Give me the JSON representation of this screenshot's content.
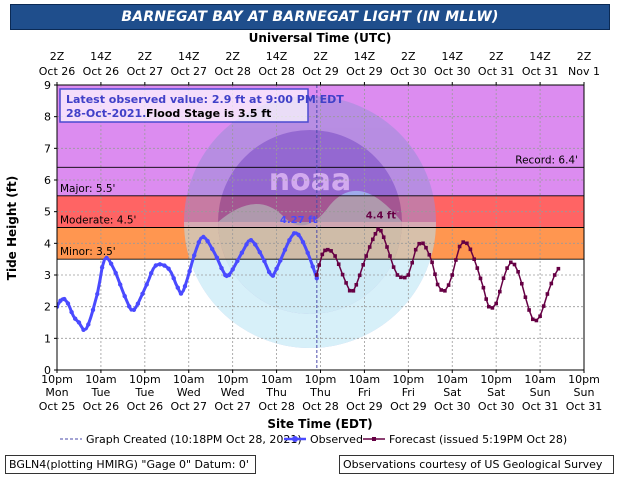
{
  "title": "BARNEGAT BAY AT BARNEGAT LIGHT (IN MLLW)",
  "top_axis_title": "Universal Time (UTC)",
  "bottom_axis_title": "Site Time (EDT)",
  "y_axis_title": "Tide Height (ft)",
  "info_box": {
    "line1": "Latest observed value: 2.9 ft at 9:00 PM EDT",
    "line2_date": "28-Oct-2021.",
    "line2_rest": "Flood Stage is 3.5 ft"
  },
  "footer": {
    "station": "BGLN4(plotting HMIRG) \"Gage 0\" Datum: 0'",
    "courtesy": "Observations courtesy of US Geological Survey"
  },
  "colors": {
    "title_bg": "#1f4e8c",
    "record_zone": "#dc8cf0",
    "major_zone": "#ff6464",
    "moderate_zone": "#ff9650",
    "minor_zone": "#ffcc44",
    "observed": "#4a4aff",
    "forecast": "#660044",
    "info_text": "#4040c8",
    "grid": "#9a9a9a"
  },
  "chart_data": {
    "type": "line",
    "ylim": [
      0,
      9
    ],
    "yticks": [
      0,
      1,
      2,
      3,
      4,
      5,
      6,
      7,
      8,
      9
    ],
    "x_unit": "hours since 10pm EDT Oct 25",
    "xlim": [
      0,
      144
    ],
    "x_tick_step": 12,
    "bottom_ticks": [
      [
        "10pm",
        "Mon",
        "Oct 25"
      ],
      [
        "10am",
        "Tue",
        "Oct 26"
      ],
      [
        "10pm",
        "Tue",
        "Oct 26"
      ],
      [
        "10am",
        "Wed",
        "Oct 27"
      ],
      [
        "10pm",
        "Wed",
        "Oct 27"
      ],
      [
        "10am",
        "Thu",
        "Oct 28"
      ],
      [
        "10pm",
        "Thu",
        "Oct 28"
      ],
      [
        "10am",
        "Fri",
        "Oct 29"
      ],
      [
        "10pm",
        "Fri",
        "Oct 29"
      ],
      [
        "10am",
        "Sat",
        "Oct 30"
      ],
      [
        "10pm",
        "Sat",
        "Oct 30"
      ],
      [
        "10am",
        "Sun",
        "Oct 31"
      ],
      [
        "10pm",
        "Sun",
        "Oct 31"
      ]
    ],
    "top_ticks": [
      [
        "2Z",
        "Oct 26"
      ],
      [
        "14Z",
        "Oct 26"
      ],
      [
        "2Z",
        "Oct 27"
      ],
      [
        "14Z",
        "Oct 27"
      ],
      [
        "2Z",
        "Oct 28"
      ],
      [
        "14Z",
        "Oct 28"
      ],
      [
        "2Z",
        "Oct 29"
      ],
      [
        "14Z",
        "Oct 29"
      ],
      [
        "2Z",
        "Oct 30"
      ],
      [
        "14Z",
        "Oct 30"
      ],
      [
        "2Z",
        "Oct 31"
      ],
      [
        "14Z",
        "Oct 31"
      ],
      [
        "2Z",
        "Nov 1"
      ]
    ],
    "stages": [
      {
        "name": "record",
        "label": "Record: 6.4'",
        "value": 6.4
      },
      {
        "name": "major",
        "label": "Major: 5.5'",
        "value": 5.5
      },
      {
        "name": "moderate",
        "label": "Moderate: 4.5'",
        "value": 4.5
      },
      {
        "name": "minor",
        "label": "Minor: 3.5'",
        "value": 3.5
      }
    ],
    "graph_created_x": 71,
    "observed_keys": [
      [
        0,
        2.0
      ],
      [
        1.5,
        2.25
      ],
      [
        3,
        2.1
      ],
      [
        4.5,
        1.7
      ],
      [
        6,
        1.5
      ],
      [
        8,
        1.3
      ],
      [
        11,
        2.4
      ],
      [
        13,
        3.5
      ],
      [
        15.5,
        3.2
      ],
      [
        19,
        2.2
      ],
      [
        21,
        1.9
      ],
      [
        24.5,
        2.7
      ],
      [
        27,
        3.3
      ],
      [
        30.5,
        3.2
      ],
      [
        33,
        2.6
      ],
      [
        34.5,
        2.5
      ],
      [
        38,
        3.8
      ],
      [
        40,
        4.2
      ],
      [
        43,
        3.7
      ],
      [
        45.5,
        3.1
      ],
      [
        47,
        3.0
      ],
      [
        51,
        3.8
      ],
      [
        53,
        4.1
      ],
      [
        56,
        3.6
      ],
      [
        58.5,
        3.0
      ],
      [
        60,
        3.2
      ],
      [
        64,
        4.2
      ],
      [
        66,
        4.27
      ],
      [
        68.5,
        3.7
      ],
      [
        71,
        2.9
      ]
    ],
    "forecast_keys": [
      [
        71,
        3.0
      ],
      [
        72.5,
        3.65
      ],
      [
        74,
        3.8
      ],
      [
        76,
        3.6
      ],
      [
        79,
        2.75
      ],
      [
        81,
        2.5
      ],
      [
        84.5,
        3.6
      ],
      [
        87,
        4.3
      ],
      [
        88.5,
        4.4
      ],
      [
        91,
        3.6
      ],
      [
        93,
        3.0
      ],
      [
        96,
        3.0
      ],
      [
        98,
        3.8
      ],
      [
        100,
        4.0
      ],
      [
        102.5,
        3.4
      ],
      [
        104,
        2.7
      ],
      [
        106,
        2.5
      ],
      [
        108,
        3.0
      ],
      [
        110,
        3.9
      ],
      [
        112,
        4.0
      ],
      [
        114,
        3.5
      ],
      [
        116.5,
        2.6
      ],
      [
        118,
        2.0
      ],
      [
        120,
        2.1
      ],
      [
        122,
        2.9
      ],
      [
        124,
        3.4
      ],
      [
        126,
        3.1
      ],
      [
        128,
        2.3
      ],
      [
        130,
        1.6
      ],
      [
        132,
        1.7
      ],
      [
        134,
        2.4
      ],
      [
        136,
        3.0
      ],
      [
        137,
        3.2
      ]
    ],
    "annotations": [
      {
        "text": "4.27 ft",
        "x": 66,
        "y": 4.27,
        "series": "observed"
      },
      {
        "text": "4.4 ft",
        "x": 88.5,
        "y": 4.4,
        "series": "forecast"
      }
    ],
    "legend": {
      "graph_created": "Graph Created (10:18PM Oct 28, 2021)",
      "observed": "Observed",
      "forecast": "Forecast (issued 5:19PM Oct 28)"
    }
  }
}
